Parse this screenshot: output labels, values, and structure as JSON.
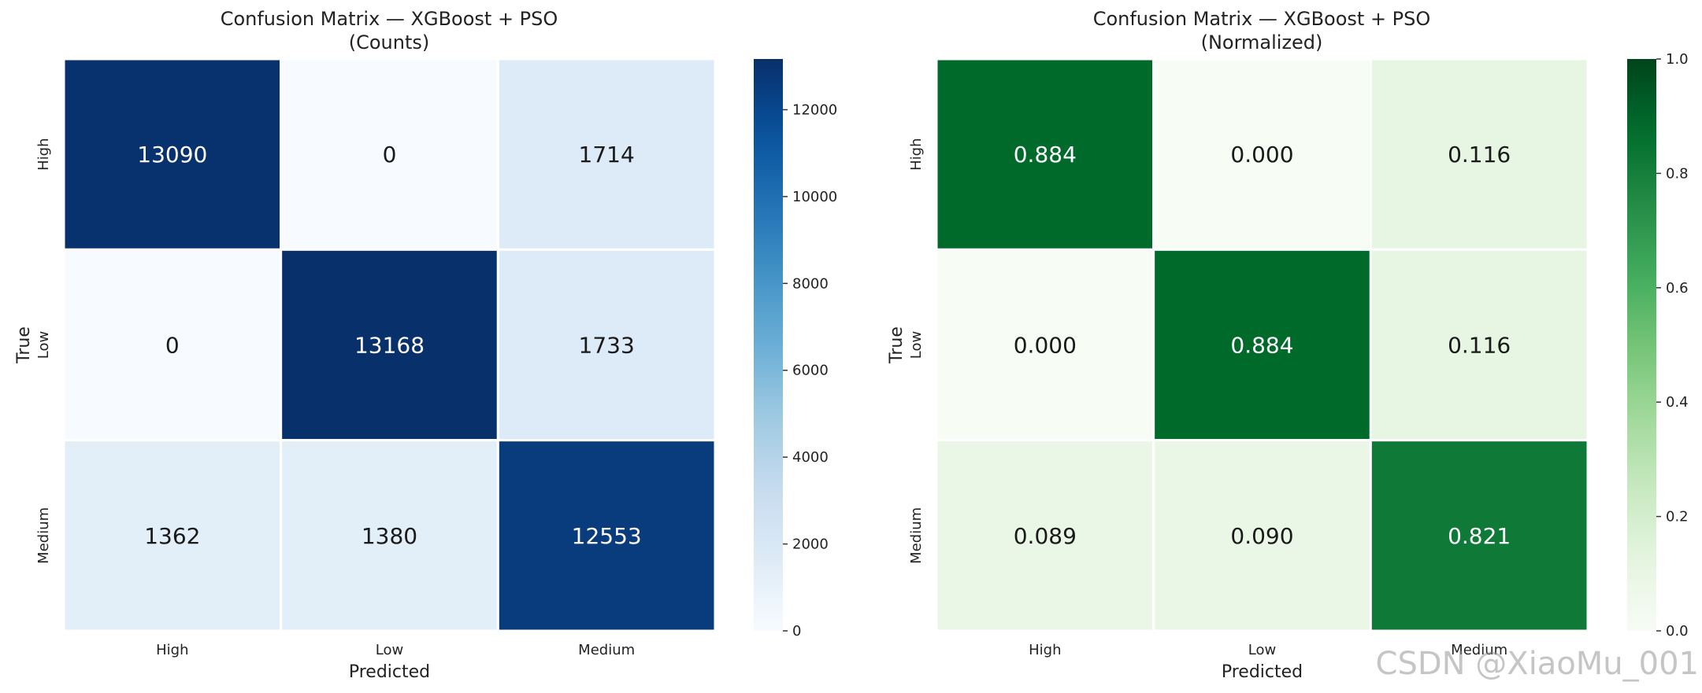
{
  "watermark": "CSDN @XiaoMu_001",
  "chart_data": [
    {
      "type": "heatmap",
      "title": "Confusion Matrix  —  XGBoost + PSO",
      "subtitle": "(Counts)",
      "xlabel": "Predicted",
      "ylabel": "True",
      "x_categories": [
        "High",
        "Low",
        "Medium"
      ],
      "y_categories": [
        "High",
        "Low",
        "Medium"
      ],
      "values": [
        [
          13090,
          0,
          1714
        ],
        [
          0,
          13168,
          1733
        ],
        [
          1362,
          1380,
          12553
        ]
      ],
      "cell_labels": [
        [
          "13090",
          "0",
          "1714"
        ],
        [
          "0",
          "13168",
          "1733"
        ],
        [
          "1362",
          "1380",
          "12553"
        ]
      ],
      "colormap": "Blues",
      "vmin": 0,
      "vmax": 13168,
      "colorbar_ticks": [
        0,
        2000,
        4000,
        6000,
        8000,
        10000,
        12000
      ],
      "colorbar_tick_labels": [
        "0",
        "2000",
        "4000",
        "6000",
        "8000",
        "10000",
        "12000"
      ]
    },
    {
      "type": "heatmap",
      "title": "Confusion Matrix  —  XGBoost + PSO",
      "subtitle": "(Normalized)",
      "xlabel": "Predicted",
      "ylabel": "True",
      "x_categories": [
        "High",
        "Low",
        "Medium"
      ],
      "y_categories": [
        "High",
        "Low",
        "Medium"
      ],
      "values": [
        [
          0.884,
          0.0,
          0.116
        ],
        [
          0.0,
          0.884,
          0.116
        ],
        [
          0.089,
          0.09,
          0.821
        ]
      ],
      "cell_labels": [
        [
          "0.884",
          "0.000",
          "0.116"
        ],
        [
          "0.000",
          "0.884",
          "0.116"
        ],
        [
          "0.089",
          "0.090",
          "0.821"
        ]
      ],
      "colormap": "Greens",
      "vmin": 0,
      "vmax": 1.0,
      "colorbar_ticks": [
        0,
        0.2,
        0.4,
        0.6,
        0.8,
        1.0
      ],
      "colorbar_tick_labels": [
        "0.0",
        "0.2",
        "0.4",
        "0.6",
        "0.8",
        "1.0"
      ]
    }
  ]
}
